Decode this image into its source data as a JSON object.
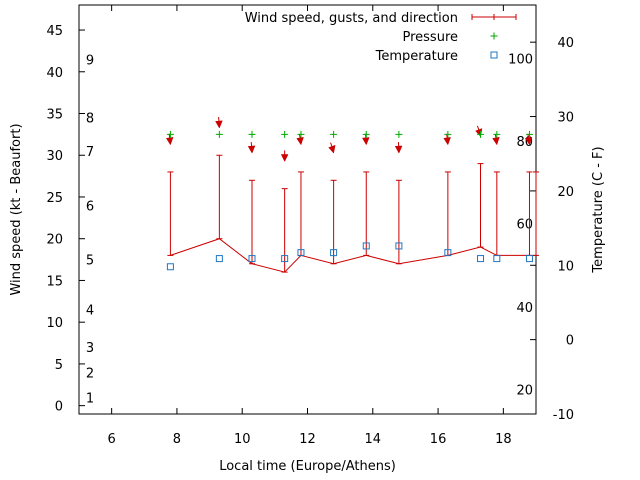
{
  "chart_data": {
    "type": "line",
    "title": "",
    "xlabel": "Local time (Europe/Athens)",
    "ylabel_left": "Wind speed (kt - Beaufort)",
    "ylabel_right": "Temperature (C - F)",
    "xlim": [
      5,
      19
    ],
    "ylim_left": [
      -1,
      48
    ],
    "ylim_right": [
      -10,
      45
    ],
    "x_ticks": [
      6,
      8,
      10,
      12,
      14,
      16,
      18
    ],
    "y_left_ticks": [
      0,
      5,
      10,
      15,
      20,
      25,
      30,
      35,
      40,
      45
    ],
    "y_right_ticks": [
      -10,
      0,
      10,
      20,
      30,
      40
    ],
    "beaufort_labels": [
      {
        "label": "1",
        "kt": 1
      },
      {
        "label": "2",
        "kt": 4
      },
      {
        "label": "3",
        "kt": 7
      },
      {
        "label": "4",
        "kt": 11.5
      },
      {
        "label": "5",
        "kt": 17.5
      },
      {
        "label": "6",
        "kt": 24
      },
      {
        "label": "7",
        "kt": 30.5
      },
      {
        "label": "8",
        "kt": 34.5
      },
      {
        "label": "9",
        "kt": 41.5
      }
    ],
    "fahrenheit_labels": [
      {
        "label": "20",
        "c": -6.7
      },
      {
        "label": "40",
        "c": 4.4
      },
      {
        "label": "60",
        "c": 15.6
      },
      {
        "label": "80",
        "c": 26.7
      },
      {
        "label": "100",
        "c": 37.8
      }
    ],
    "legend": [
      {
        "name": "Wind speed, gusts, and direction",
        "color": "#cc0000",
        "marker": "line"
      },
      {
        "name": "Pressure",
        "color": "#00aa00",
        "marker": "plus"
      },
      {
        "name": "Temperature",
        "color": "#1f77c4",
        "marker": "square"
      }
    ],
    "series": [
      {
        "name": "Wind speed, gusts, and direction",
        "x": [
          7.8,
          9.3,
          10.3,
          11.3,
          11.8,
          12.8,
          13.8,
          14.8,
          16.3,
          17.3,
          17.8,
          18.8,
          19.0
        ],
        "wind_kt": [
          18,
          20,
          17,
          16,
          18,
          17,
          18,
          17,
          18,
          19,
          18,
          18,
          18
        ],
        "gust_kt": [
          28,
          30,
          27,
          26,
          28,
          27,
          28,
          27,
          28,
          29,
          28,
          28,
          28
        ],
        "direction_deg": [
          8,
          5,
          5,
          0,
          10,
          20,
          5,
          3,
          8,
          20,
          10,
          10,
          10
        ]
      },
      {
        "name": "Pressure",
        "x": [
          7.8,
          9.3,
          10.3,
          11.3,
          11.8,
          12.8,
          13.8,
          14.8,
          16.3,
          17.3,
          17.8,
          18.8
        ],
        "marker_kt": [
          32.5,
          32.5,
          32.5,
          32.5,
          32.5,
          32.5,
          32.5,
          32.5,
          32.5,
          32.5,
          32.5,
          32.5
        ]
      },
      {
        "name": "Temperature",
        "x": [
          7.8,
          9.3,
          10.3,
          11.3,
          11.8,
          12.8,
          13.8,
          14.8,
          16.3,
          17.3,
          17.8,
          18.8
        ],
        "values_c": [
          9.8,
          10.9,
          10.9,
          10.9,
          11.7,
          11.7,
          12.6,
          12.6,
          11.7,
          10.9,
          10.9,
          10.9
        ]
      }
    ]
  }
}
